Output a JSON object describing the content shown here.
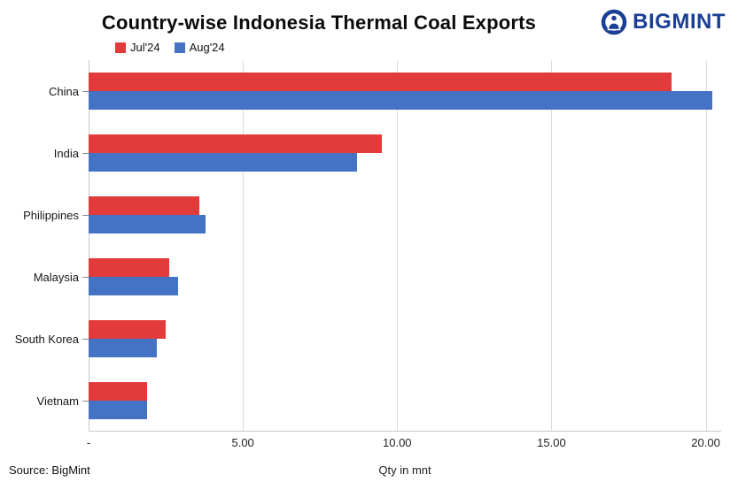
{
  "header": {
    "title": "Country-wise Indonesia Thermal Coal Exports",
    "brand": "BIGMINT"
  },
  "legend": {
    "items": [
      {
        "label": "Jul'24",
        "color": "#e23b3b"
      },
      {
        "label": "Aug'24",
        "color": "#4472c4"
      }
    ]
  },
  "footer": {
    "source": "Source: BigMint",
    "xlabel": "Qty in mnt"
  },
  "colors": {
    "jul24": "#e23b3b",
    "aug24": "#4472c4",
    "brand_blue": "#1a3f94",
    "gridline": "#dcdcdc",
    "axis": "#c9c9c9"
  },
  "chart_data": {
    "type": "bar",
    "orientation": "horizontal",
    "title": "Country-wise Indonesia Thermal Coal Exports",
    "categories": [
      "China",
      "India",
      "Philippines",
      "Malaysia",
      "South Korea",
      "Vietnam"
    ],
    "series": [
      {
        "name": "Jul'24",
        "color": "#e23b3b",
        "values": [
          18.9,
          9.5,
          3.6,
          2.6,
          2.5,
          1.9
        ]
      },
      {
        "name": "Aug'24",
        "color": "#4472c4",
        "values": [
          20.2,
          8.7,
          3.8,
          2.9,
          2.2,
          1.9
        ]
      }
    ],
    "xlabel": "Qty in mnt",
    "xlim": [
      0,
      20.5
    ],
    "x_ticks": [
      {
        "value": 0,
        "label": "-"
      },
      {
        "value": 5,
        "label": "5.00"
      },
      {
        "value": 10,
        "label": "10.00"
      },
      {
        "value": 15,
        "label": "15.00"
      },
      {
        "value": 20,
        "label": "20.00"
      }
    ],
    "gridlines": [
      5,
      10,
      15,
      20
    ],
    "grid": "vertical",
    "legend_position": "top-left",
    "source": "Source: BigMint"
  }
}
